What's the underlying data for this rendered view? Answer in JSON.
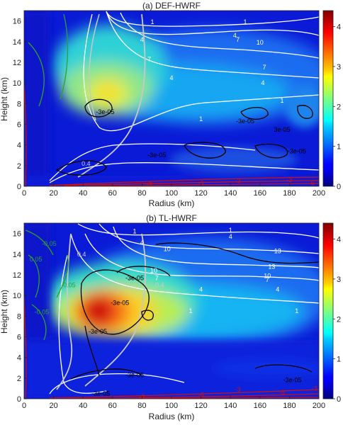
{
  "chart_data": [
    {
      "type": "heatmap",
      "title": "(a) DEF-HWRF",
      "xlabel": "Radius (km)",
      "ylabel": "Height (km)",
      "xlim": [
        0,
        200
      ],
      "ylim": [
        0,
        17
      ],
      "x_ticks": [
        "0",
        "20",
        "40",
        "60",
        "80",
        "100",
        "120",
        "140",
        "160",
        "180",
        "200"
      ],
      "y_ticks": [
        "0",
        "2",
        "4",
        "6",
        "8",
        "10",
        "12",
        "14",
        "16"
      ],
      "colorbar": {
        "range": [
          0,
          4.4
        ],
        "ticks": [
          "0",
          "1",
          "2",
          "3",
          "4"
        ],
        "colormap": "jet"
      },
      "field_peak": {
        "radius_km": 55,
        "height_km": 8.5,
        "value": 2.3
      },
      "contour_labels": [
        {
          "text": "1",
          "x": 87,
          "y": 15.9,
          "color": "#ffffff"
        },
        {
          "text": "1",
          "x": 150,
          "y": 15.9,
          "color": "#ffffff"
        },
        {
          "text": "4",
          "x": 80,
          "y": 14.2,
          "color": "#ffffff"
        },
        {
          "text": "4",
          "x": 143,
          "y": 14.6,
          "color": "#ffffff"
        },
        {
          "text": "7",
          "x": 145,
          "y": 14.2,
          "color": "#ffffff"
        },
        {
          "text": "10",
          "x": 160,
          "y": 13.9,
          "color": "#ffffff"
        },
        {
          "text": "7",
          "x": 85,
          "y": 12.3,
          "color": "#ffffff"
        },
        {
          "text": "7",
          "x": 163,
          "y": 11.5,
          "color": "#ffffff"
        },
        {
          "text": "4",
          "x": 100,
          "y": 10.5,
          "color": "#ffffff"
        },
        {
          "text": "4",
          "x": 162,
          "y": 10.0,
          "color": "#ffffff"
        },
        {
          "text": "1",
          "x": 175,
          "y": 8.3,
          "color": "#ffffff"
        },
        {
          "text": "1",
          "x": 120,
          "y": 6.5,
          "color": "#ffffff"
        },
        {
          "text": "-3e-05",
          "x": 55,
          "y": 7.2,
          "color": "#000000"
        },
        {
          "text": "-3e-05",
          "x": 150,
          "y": 6.3,
          "color": "#000000"
        },
        {
          "text": "3e-05",
          "x": 175,
          "y": 5.5,
          "color": "#000000"
        },
        {
          "text": "-3e-05",
          "x": 185,
          "y": 3.4,
          "color": "#000000"
        },
        {
          "text": "-3e-05",
          "x": 90,
          "y": 3.0,
          "color": "#000000"
        },
        {
          "text": "0.4",
          "x": 42,
          "y": 2.2,
          "color": "#cccccc"
        },
        {
          "text": "-3",
          "x": 145,
          "y": 0.5,
          "color": "#d01010"
        },
        {
          "text": "-3",
          "x": 180,
          "y": 0.6,
          "color": "#d01010"
        },
        {
          "text": "-6",
          "x": 120,
          "y": 0.3,
          "color": "#d01010"
        },
        {
          "text": "-6",
          "x": 195,
          "y": 0.3,
          "color": "#d01010"
        },
        {
          "text": "-9",
          "x": 85,
          "y": 0.2,
          "color": "#d01010"
        }
      ]
    },
    {
      "type": "heatmap",
      "title": "(b) TL-HWRF",
      "xlabel": "Radius (km)",
      "ylabel": "Height (km)",
      "xlim": [
        0,
        200
      ],
      "ylim": [
        0,
        17
      ],
      "x_ticks": [
        "0",
        "20",
        "40",
        "60",
        "80",
        "100",
        "120",
        "140",
        "160",
        "180",
        "200"
      ],
      "y_ticks": [
        "0",
        "2",
        "4",
        "6",
        "8",
        "10",
        "12",
        "14",
        "16"
      ],
      "colorbar": {
        "range": [
          0,
          4.4
        ],
        "ticks": [
          "0",
          "1",
          "2",
          "3",
          "4"
        ],
        "colormap": "jet"
      },
      "field_peak": {
        "radius_km": 55,
        "height_km": 8.5,
        "value": 4.2
      },
      "contour_labels": [
        {
          "text": "1",
          "x": 75,
          "y": 16.2,
          "color": "#ffffff"
        },
        {
          "text": "4",
          "x": 80,
          "y": 15.1,
          "color": "#ffffff"
        },
        {
          "text": "1",
          "x": 140,
          "y": 16.3,
          "color": "#ffffff"
        },
        {
          "text": "4",
          "x": 140,
          "y": 15.7,
          "color": "#ffffff"
        },
        {
          "text": "10",
          "x": 97,
          "y": 14.5,
          "color": "#ffffff"
        },
        {
          "text": "13",
          "x": 172,
          "y": 14.3,
          "color": "#ffffff"
        },
        {
          "text": "13",
          "x": 168,
          "y": 12.8,
          "color": "#ffffff"
        },
        {
          "text": "10",
          "x": 165,
          "y": 11.9,
          "color": "#ffffff"
        },
        {
          "text": "7",
          "x": 165,
          "y": 11.5,
          "color": "#ffffff"
        },
        {
          "text": "10",
          "x": 88,
          "y": 12.4,
          "color": "#ffffff"
        },
        {
          "text": "7",
          "x": 90,
          "y": 11.7,
          "color": "#ffffff"
        },
        {
          "text": "4",
          "x": 120,
          "y": 10.6,
          "color": "#ffffff"
        },
        {
          "text": "4",
          "x": 172,
          "y": 10.6,
          "color": "#ffffff"
        },
        {
          "text": "1",
          "x": 113,
          "y": 8.5,
          "color": "#ffffff"
        },
        {
          "text": "1",
          "x": 185,
          "y": 8.5,
          "color": "#ffffff"
        },
        {
          "text": "-3e-05",
          "x": 75,
          "y": 11.7,
          "color": "#000000"
        },
        {
          "text": "-3e-05",
          "x": 65,
          "y": 9.3,
          "color": "#000000"
        },
        {
          "text": "-3e-05",
          "x": 50,
          "y": 6.5,
          "color": "#000000"
        },
        {
          "text": "-3e-05",
          "x": 75,
          "y": 2.3,
          "color": "#000000"
        },
        {
          "text": "-3e-05",
          "x": 182,
          "y": 1.8,
          "color": "#000000"
        },
        {
          "text": "-0.05",
          "x": 17,
          "y": 15.0,
          "color": "#2fa02f"
        },
        {
          "text": "0.05",
          "x": 8,
          "y": 13.5,
          "color": "#2fa02f"
        },
        {
          "text": "-0.05",
          "x": 30,
          "y": 11.0,
          "color": "#2fa02f"
        },
        {
          "text": "-0.05",
          "x": 12,
          "y": 8.4,
          "color": "#2fa02f"
        },
        {
          "text": "0.4",
          "x": 39,
          "y": 14.0,
          "color": "#cccccc"
        },
        {
          "text": "0.4",
          "x": 92,
          "y": 11.0,
          "color": "#cccccc"
        },
        {
          "text": "-3",
          "x": 145,
          "y": 0.9,
          "color": "#d01010"
        },
        {
          "text": "-3",
          "x": 197,
          "y": 1.0,
          "color": "#d01010"
        },
        {
          "text": "-6",
          "x": 175,
          "y": 0.6,
          "color": "#d01010"
        },
        {
          "text": "-6",
          "x": 120,
          "y": 0.4,
          "color": "#d01010"
        },
        {
          "text": "-9",
          "x": 80,
          "y": 0.2,
          "color": "#d01010"
        },
        {
          "text": "-3e-05",
          "x": 52,
          "y": 0.5,
          "color": "#000000"
        }
      ]
    }
  ]
}
